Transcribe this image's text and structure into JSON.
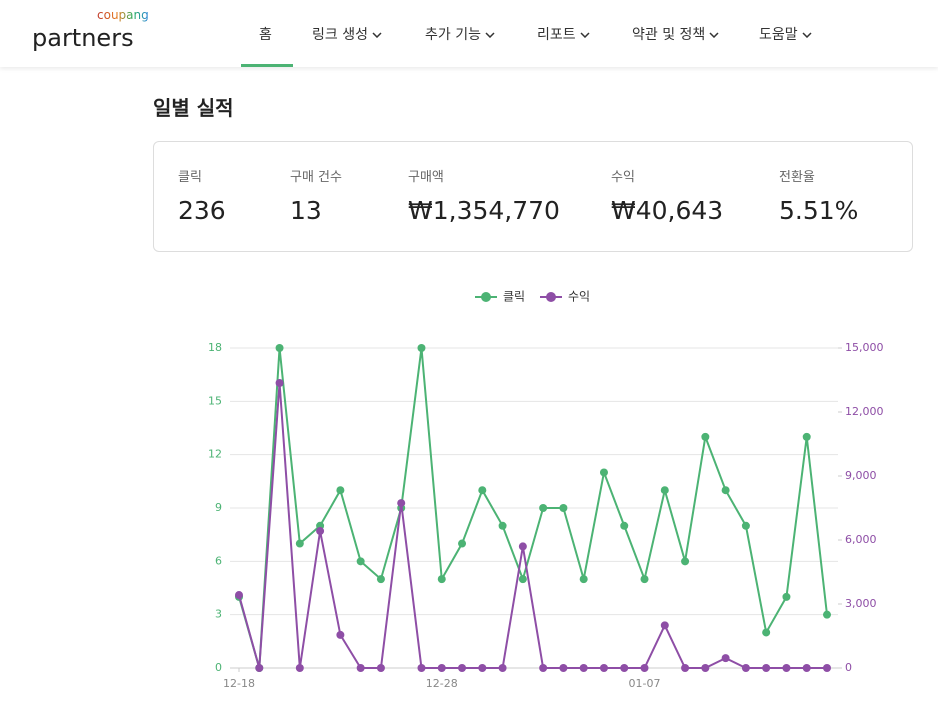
{
  "header": {
    "logo_top": "coupang",
    "logo": "partners",
    "nav": [
      "홈",
      "링크 생성",
      "추가 기능",
      "리포트",
      "약관 및 정책",
      "도움말"
    ]
  },
  "page_title": "일별 실적",
  "stats": [
    {
      "label": "클릭",
      "value": "236"
    },
    {
      "label": "구매 건수",
      "value": "13"
    },
    {
      "label": "구매액",
      "value": "₩1,354,770"
    },
    {
      "label": "수익",
      "value": "₩40,643"
    },
    {
      "label": "전환율",
      "value": "5.51%"
    }
  ],
  "chart_data": {
    "type": "line",
    "categories": [
      "12-18",
      null,
      null,
      null,
      null,
      null,
      null,
      null,
      null,
      null,
      "12-28",
      null,
      null,
      null,
      null,
      null,
      null,
      null,
      null,
      null,
      "01-07",
      null,
      null,
      null,
      null,
      null,
      null,
      null,
      null,
      null
    ],
    "series": [
      {
        "name": "클릭",
        "color": "#4cb374",
        "values": [
          4,
          0,
          18,
          7,
          8,
          10,
          6,
          5,
          9,
          18,
          5,
          7,
          10,
          8,
          5,
          9,
          9,
          5,
          11,
          8,
          5,
          10,
          6,
          13,
          10,
          8,
          2,
          4,
          13,
          3
        ]
      },
      {
        "name": "수익",
        "color": "#8e4ea6",
        "axis": "y2",
        "values": [
          3420,
          0,
          13360,
          0,
          6420,
          1550,
          0,
          0,
          7730,
          0,
          0,
          0,
          0,
          0,
          5700,
          0,
          0,
          0,
          0,
          0,
          0,
          2000,
          0,
          0,
          463,
          0,
          0,
          0,
          0,
          0
        ]
      }
    ],
    "ylim": [
      0,
      18
    ],
    "yticks": [
      0,
      3,
      6,
      9,
      12,
      15,
      18
    ],
    "y2lim": [
      0,
      15000
    ],
    "y2ticks": [
      0,
      {
        "value": 3000,
        "label": "3,000"
      },
      {
        "value": 6000,
        "label": "6,000"
      },
      {
        "value": 9000,
        "label": "9,000"
      },
      {
        "value": 12000,
        "label": "12,000"
      },
      {
        "value": 15000,
        "label": "15,000"
      }
    ],
    "grid": true,
    "legend": "top"
  }
}
